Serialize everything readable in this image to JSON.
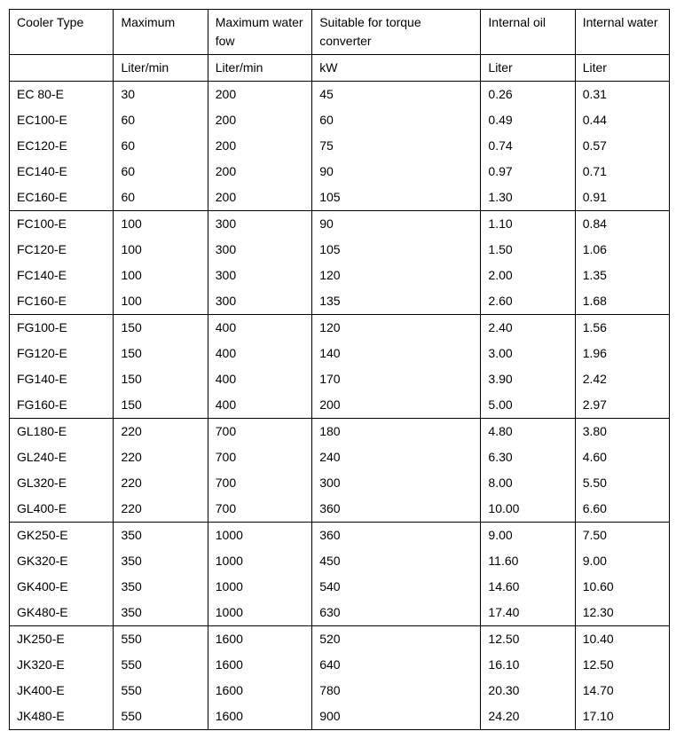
{
  "header1": {
    "c1": "Cooler Type",
    "c2": "Maximum",
    "c3": "Maximum water fow",
    "c4": "Suitable for torque converter",
    "c5": "Internal oil",
    "c6": "Internal water"
  },
  "header2": {
    "c1": "",
    "c2": "Liter/min",
    "c3": "Liter/min",
    "c4": "kW",
    "c5": "Liter",
    "c6": "Liter"
  },
  "groups": [
    [
      [
        "EC 80-E",
        "30",
        "200",
        "45",
        "0.26",
        "0.31"
      ],
      [
        "EC100-E",
        "60",
        "200",
        "60",
        "0.49",
        "0.44"
      ],
      [
        "EC120-E",
        "60",
        "200",
        "75",
        "0.74",
        "0.57"
      ],
      [
        "EC140-E",
        "60",
        "200",
        "90",
        "0.97",
        "0.71"
      ],
      [
        "EC160-E",
        "60",
        "200",
        "105",
        "1.30",
        "0.91"
      ]
    ],
    [
      [
        "FC100-E",
        "100",
        "300",
        "90",
        "1.10",
        "0.84"
      ],
      [
        "FC120-E",
        "100",
        "300",
        "105",
        "1.50",
        "1.06"
      ],
      [
        "FC140-E",
        "100",
        "300",
        "120",
        "2.00",
        "1.35"
      ],
      [
        "FC160-E",
        "100",
        "300",
        "135",
        "2.60",
        "1.68"
      ]
    ],
    [
      [
        "FG100-E",
        "150",
        "400",
        "120",
        "2.40",
        "1.56"
      ],
      [
        "FG120-E",
        "150",
        "400",
        "140",
        "3.00",
        "1.96"
      ],
      [
        "FG140-E",
        "150",
        "400",
        "170",
        "3.90",
        "2.42"
      ],
      [
        "FG160-E",
        "150",
        "400",
        "200",
        "5.00",
        "2.97"
      ]
    ],
    [
      [
        "GL180-E",
        "220",
        "700",
        "180",
        "4.80",
        "3.80"
      ],
      [
        "GL240-E",
        "220",
        "700",
        "240",
        "6.30",
        "4.60"
      ],
      [
        "GL320-E",
        "220",
        "700",
        "300",
        "8.00",
        "5.50"
      ],
      [
        "GL400-E",
        "220",
        "700",
        "360",
        "10.00",
        "6.60"
      ]
    ],
    [
      [
        "GK250-E",
        "350",
        "1000",
        "360",
        "9.00",
        "7.50"
      ],
      [
        "GK320-E",
        "350",
        "1000",
        "450",
        "11.60",
        "9.00"
      ],
      [
        "GK400-E",
        "350",
        "1000",
        "540",
        "14.60",
        "10.60"
      ],
      [
        "GK480-E",
        "350",
        "1000",
        "630",
        "17.40",
        "12.30"
      ]
    ],
    [
      [
        "JK250-E",
        "550",
        "1600",
        "520",
        "12.50",
        "10.40"
      ],
      [
        "JK320-E",
        "550",
        "1600",
        "640",
        "16.10",
        "12.50"
      ],
      [
        "JK400-E",
        "550",
        "1600",
        "780",
        "20.30",
        "14.70"
      ],
      [
        "JK480-E",
        "550",
        "1600",
        "900",
        "24.20",
        "17.10"
      ]
    ]
  ]
}
